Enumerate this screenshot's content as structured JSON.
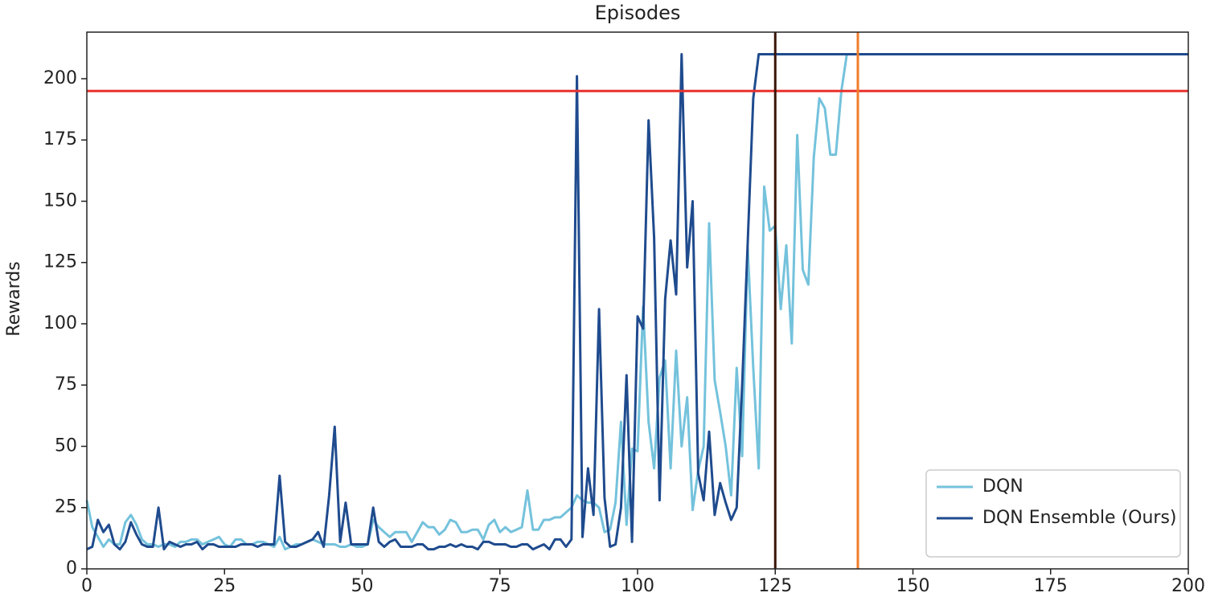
{
  "chart_data": {
    "type": "line",
    "title": "Episodes",
    "y_label": "Rewards",
    "x": [
      0,
      1,
      2,
      3,
      4,
      5,
      6,
      7,
      8,
      9,
      10,
      11,
      12,
      13,
      14,
      15,
      16,
      17,
      18,
      19,
      20,
      21,
      22,
      23,
      24,
      25,
      26,
      27,
      28,
      29,
      30,
      31,
      32,
      33,
      34,
      35,
      36,
      37,
      38,
      39,
      40,
      41,
      42,
      43,
      44,
      45,
      46,
      47,
      48,
      49,
      50,
      51,
      52,
      53,
      54,
      55,
      56,
      57,
      58,
      59,
      60,
      61,
      62,
      63,
      64,
      65,
      66,
      67,
      68,
      69,
      70,
      71,
      72,
      73,
      74,
      75,
      76,
      77,
      78,
      79,
      80,
      81,
      82,
      83,
      84,
      85,
      86,
      87,
      88,
      89,
      90,
      91,
      92,
      93,
      94,
      95,
      96,
      97,
      98,
      99,
      100,
      101,
      102,
      103,
      104,
      105,
      106,
      107,
      108,
      109,
      110,
      111,
      112,
      113,
      114,
      115,
      116,
      117,
      118,
      119,
      120,
      121,
      122,
      123,
      124,
      125,
      126,
      127,
      128,
      129,
      130,
      131,
      132,
      133,
      134,
      135,
      136,
      137,
      138,
      200
    ],
    "series": [
      {
        "name": "DQN",
        "color": "#74c2dc",
        "values": [
          28,
          17,
          13,
          9,
          12,
          10,
          10,
          19,
          22,
          18,
          12,
          10,
          10,
          9,
          10,
          10,
          9,
          11,
          11,
          12,
          12,
          10,
          11,
          12,
          13,
          10,
          9,
          12,
          12,
          10,
          10,
          11,
          11,
          10,
          9,
          13,
          8,
          9,
          10,
          10,
          11,
          12,
          11,
          10,
          10,
          10,
          9,
          9,
          10,
          9,
          9,
          10,
          20,
          17,
          15,
          13,
          15,
          15,
          15,
          11,
          15,
          19,
          17,
          17,
          14,
          16,
          20,
          19,
          15,
          15,
          16,
          16,
          12,
          18,
          20,
          15,
          17,
          15,
          16,
          17,
          32,
          16,
          16,
          20,
          20,
          21,
          21,
          23,
          25,
          30,
          28,
          27,
          27,
          25,
          15,
          16,
          27,
          60,
          18,
          49,
          48,
          107,
          60,
          41,
          78,
          85,
          41,
          89,
          50,
          70,
          24,
          40,
          50,
          141,
          77,
          64,
          50,
          30,
          82,
          46,
          131,
          82,
          41,
          156,
          138,
          140,
          106,
          132,
          92,
          177,
          122,
          116,
          168,
          192,
          188,
          169,
          169,
          195,
          210,
          null
        ]
      },
      {
        "name": "DQN Ensemble (Ours)",
        "color": "#1f4b8e",
        "values": [
          8,
          9,
          20,
          15,
          18,
          10,
          8,
          11,
          19,
          14,
          10,
          9,
          9,
          25,
          8,
          11,
          10,
          9,
          10,
          10,
          11,
          8,
          10,
          10,
          9,
          9,
          9,
          9,
          10,
          10,
          10,
          9,
          10,
          10,
          10,
          38,
          11,
          9,
          9,
          10,
          11,
          12,
          15,
          9,
          30,
          58,
          11,
          27,
          10,
          10,
          10,
          10,
          25,
          11,
          9,
          11,
          12,
          9,
          9,
          9,
          10,
          10,
          8,
          8,
          9,
          9,
          10,
          9,
          10,
          9,
          9,
          8,
          11,
          11,
          10,
          10,
          10,
          9,
          9,
          10,
          10,
          8,
          9,
          10,
          8,
          12,
          12,
          9,
          12,
          201,
          13,
          41,
          22,
          106,
          29,
          9,
          10,
          25,
          79,
          11,
          103,
          98,
          183,
          135,
          28,
          110,
          134,
          112,
          210,
          123,
          150,
          39,
          28,
          56,
          22,
          35,
          27,
          20,
          25,
          75,
          133,
          192,
          210,
          210,
          210,
          210,
          210,
          210,
          210,
          210,
          210,
          210,
          210,
          210,
          210,
          210,
          210,
          210,
          210,
          210
        ]
      }
    ],
    "hlines": [
      {
        "value": 195,
        "color": "#e8302c"
      }
    ],
    "vlines": [
      {
        "value": 125,
        "color": "#3a1408"
      },
      {
        "value": 140,
        "color": "#f07d2b"
      }
    ],
    "xlim": [
      0,
      200
    ],
    "ylim": [
      0,
      219
    ],
    "xticks": [
      0,
      25,
      50,
      75,
      100,
      125,
      150,
      175,
      200
    ],
    "yticks": [
      0,
      25,
      50,
      75,
      100,
      125,
      150,
      175,
      200
    ],
    "legend": "lower right"
  }
}
